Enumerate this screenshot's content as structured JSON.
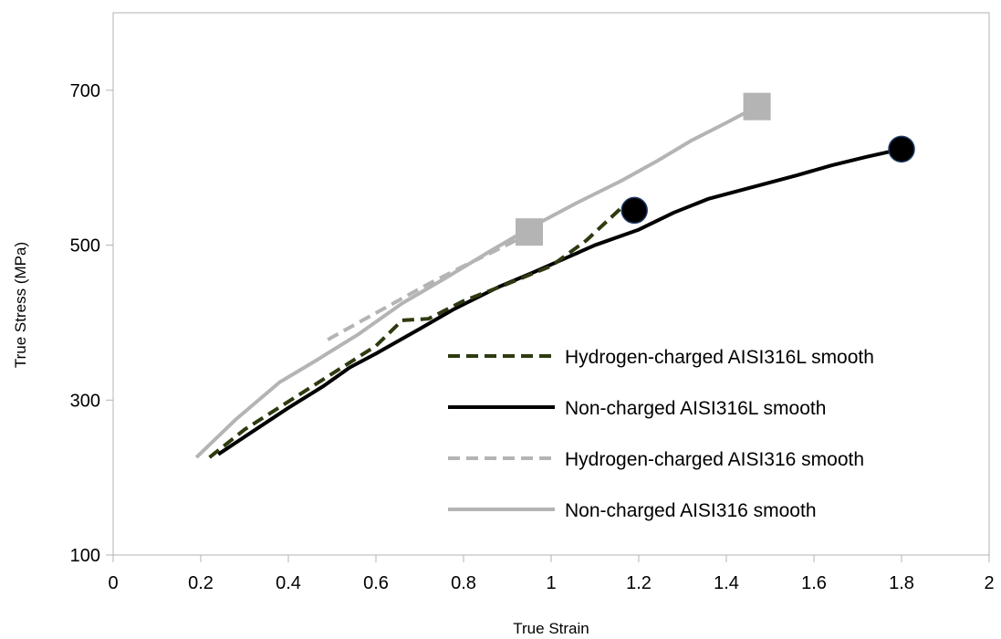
{
  "chart_data": {
    "type": "line",
    "title": "",
    "xlabel": "True Strain",
    "ylabel": "True Stress  (MPa)",
    "xlim": [
      0,
      2
    ],
    "ylim": [
      100,
      800
    ],
    "xticks": [
      0,
      0.2,
      0.4,
      0.6,
      0.8,
      1,
      1.2,
      1.4,
      1.6,
      1.8,
      2
    ],
    "xtick_labels": [
      "0",
      "0.2",
      "0.4",
      "0.6",
      "0.8",
      "1",
      "1.2",
      "1.4",
      "1.6",
      "1.8",
      "2"
    ],
    "yticks": [
      100,
      300,
      500,
      700
    ],
    "ytick_labels": [
      "100",
      "300",
      "500",
      "700"
    ],
    "grid": false,
    "legend_position": "lower-right",
    "series": [
      {
        "name": "Hydrogen-charged AISI316L smooth",
        "color": "#2e3a10",
        "style": "dashed",
        "x": [
          0.22,
          0.3,
          0.4,
          0.5,
          0.6,
          0.66,
          0.72,
          0.8,
          0.9,
          1.0,
          1.08,
          1.16
        ],
        "y": [
          226,
          262,
          298,
          334,
          370,
          403,
          405,
          428,
          450,
          473,
          506,
          548
        ],
        "end_marker": {
          "shape": "circle",
          "x": 1.19,
          "y": 545
        }
      },
      {
        "name": "Non-charged AISI316L smooth",
        "color": "#000000",
        "style": "solid",
        "x": [
          0.24,
          0.32,
          0.4,
          0.48,
          0.54,
          0.6,
          0.7,
          0.78,
          0.88,
          0.96,
          1.04,
          1.1,
          1.2,
          1.28,
          1.36,
          1.46,
          1.56,
          1.64,
          1.72,
          1.8
        ],
        "y": [
          230,
          260,
          290,
          318,
          342,
          360,
          392,
          418,
          446,
          465,
          485,
          500,
          520,
          542,
          560,
          575,
          590,
          603,
          614,
          624
        ],
        "end_marker": {
          "shape": "circle",
          "x": 1.8,
          "y": 624
        }
      },
      {
        "name": "Hydrogen-charged AISI316 smooth",
        "color": "#b4b4b4",
        "style": "dashed",
        "x": [
          0.49,
          0.56,
          0.64,
          0.72,
          0.8,
          0.88,
          0.95
        ],
        "y": [
          378,
          400,
          425,
          450,
          473,
          495,
          515
        ],
        "end_marker": {
          "shape": "square",
          "x": 0.95,
          "y": 517
        }
      },
      {
        "name": "Non-charged AISI316 smooth",
        "color": "#b4b4b4",
        "style": "solid",
        "x": [
          0.19,
          0.28,
          0.38,
          0.46,
          0.56,
          0.66,
          0.76,
          0.86,
          0.96,
          1.06,
          1.16,
          1.24,
          1.32,
          1.4,
          1.47
        ],
        "y": [
          226,
          275,
          323,
          350,
          385,
          425,
          458,
          492,
          525,
          555,
          583,
          608,
          635,
          658,
          679
        ],
        "end_marker": {
          "shape": "square",
          "x": 1.47,
          "y": 679
        }
      }
    ]
  }
}
